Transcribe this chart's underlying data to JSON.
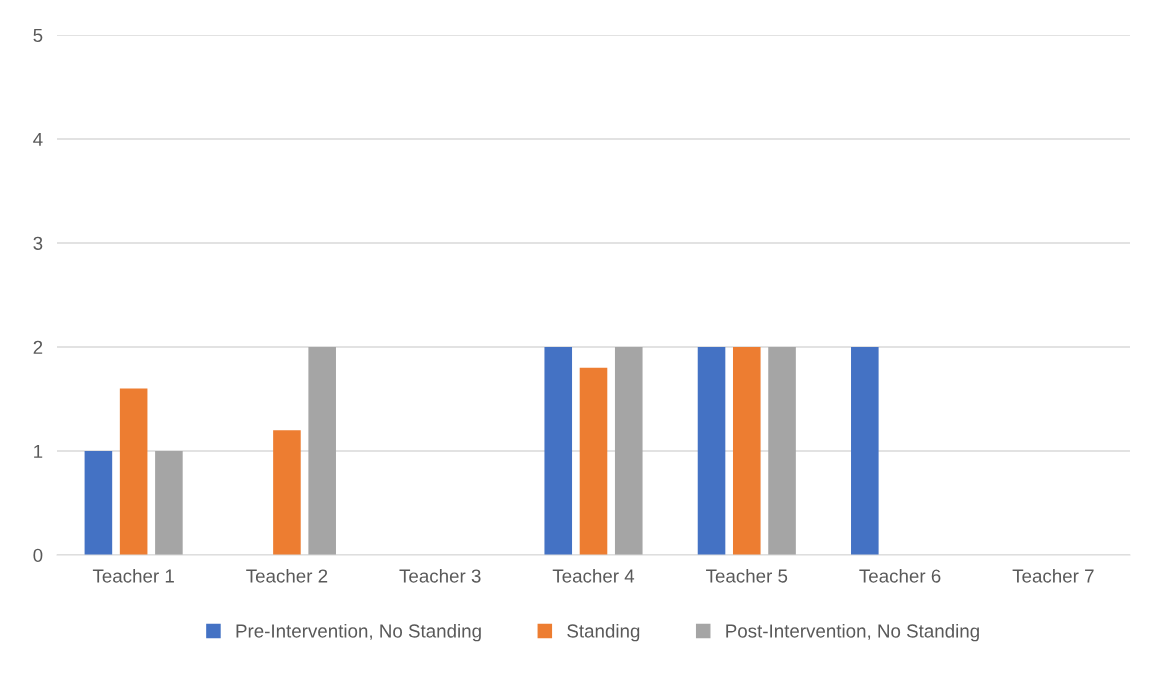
{
  "chart_data": {
    "type": "bar",
    "categories": [
      "Teacher 1",
      "Teacher 2",
      "Teacher 3",
      "Teacher 4",
      "Teacher 5",
      "Teacher 6",
      "Teacher 7"
    ],
    "series": [
      {
        "name": "Pre-Intervention, No Standing",
        "color": "#4472c4",
        "values": [
          1,
          0,
          0,
          2,
          2,
          2,
          0
        ]
      },
      {
        "name": "Standing",
        "color": "#ed7d31",
        "values": [
          1.6,
          1.2,
          0,
          1.8,
          2,
          0,
          0
        ]
      },
      {
        "name": "Post-Intervention, No Standing",
        "color": "#a5a5a5",
        "values": [
          1,
          2,
          0,
          2,
          2,
          0,
          0
        ]
      }
    ],
    "ylim": [
      0,
      5
    ],
    "yticks": [
      0,
      1,
      2,
      3,
      4,
      5
    ],
    "grid": "y",
    "legend": "bottom"
  }
}
